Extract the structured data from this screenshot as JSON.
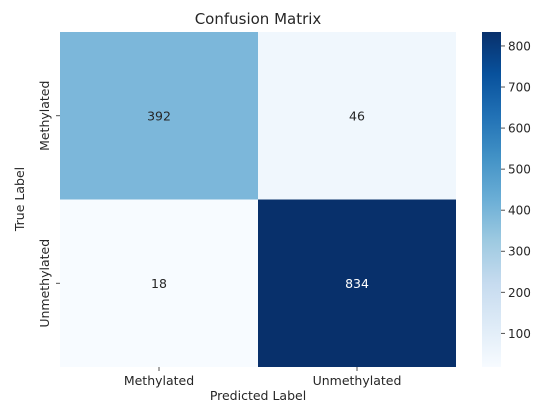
{
  "chart_data": {
    "type": "heatmap",
    "title": "Confusion Matrix",
    "xlabel": "Predicted Label",
    "ylabel": "True Label",
    "x_categories": [
      "Methylated",
      "Unmethylated"
    ],
    "y_categories": [
      "Methylated",
      "Unmethylated"
    ],
    "values": [
      [
        392,
        46
      ],
      [
        18,
        834
      ]
    ],
    "colormap": "Blues",
    "colorbar": {
      "range": [
        18,
        834
      ],
      "ticks": [
        100,
        200,
        300,
        400,
        500,
        600,
        700,
        800
      ]
    },
    "annotation_colors": {
      "light": "#262626",
      "dark": "#ffffff"
    }
  }
}
